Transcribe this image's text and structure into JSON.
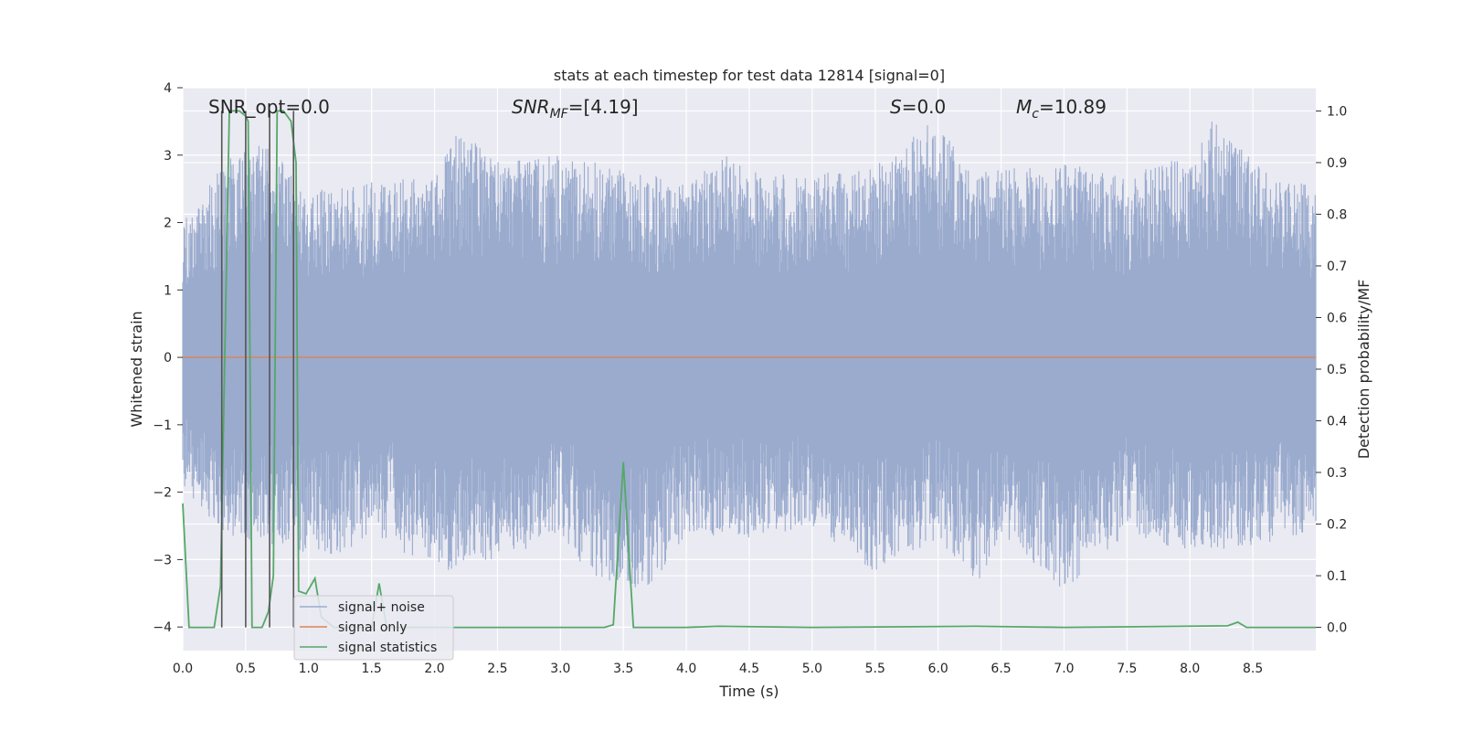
{
  "chart_data": {
    "type": "line",
    "title": "stats at each timestep for test data 12814 [signal=0]",
    "xlabel": "Time (s)",
    "ylabel": "Whitened strain",
    "y2label": "Detection probability/MF",
    "xlim": [
      0.0,
      9.0
    ],
    "ylim": [
      -4.35,
      4.0
    ],
    "y2lim": [
      -0.045,
      1.045
    ],
    "x_ticks": [
      "0.0",
      "0.5",
      "1.0",
      "1.5",
      "2.0",
      "2.5",
      "3.0",
      "3.5",
      "4.0",
      "4.5",
      "5.0",
      "5.5",
      "6.0",
      "6.5",
      "7.0",
      "7.5",
      "8.0",
      "8.5"
    ],
    "y_ticks": [
      "4",
      "3",
      "2",
      "1",
      "0",
      "−1",
      "−2",
      "−3",
      "−4"
    ],
    "y2_ticks": [
      "1.0",
      "0.9",
      "0.8",
      "0.7",
      "0.6",
      "0.5",
      "0.4",
      "0.3",
      "0.2",
      "0.1",
      "0.0"
    ],
    "annotations": {
      "snr_opt": "SNR_opt=0.0",
      "snr_mf_main": "SNR",
      "snr_mf_sub": "MF",
      "snr_mf_value": "=[4.19]",
      "s_main": "S",
      "s_value": "=0.0",
      "mc_main": "M",
      "mc_sub": "c",
      "mc_value": "=10.89"
    },
    "legend": [
      "signal+ noise",
      "signal only",
      "signal statistics"
    ],
    "legend_position": "lower-left",
    "colors": {
      "noise": "#9aabce",
      "signal_only": "#dd8452",
      "statistics": "#55a868",
      "marker": "#555555",
      "panel_bg": "#eaeaf2",
      "grid": "#ffffff"
    },
    "series": [
      {
        "name": "signal+ noise",
        "envelope_upper": [
          [
            0.0,
            2.0
          ],
          [
            0.3,
            2.8
          ],
          [
            0.5,
            3.3
          ],
          [
            0.7,
            3.1
          ],
          [
            1.0,
            2.5
          ],
          [
            1.5,
            2.6
          ],
          [
            2.0,
            2.7
          ],
          [
            2.2,
            3.4
          ],
          [
            2.5,
            2.9
          ],
          [
            3.0,
            3.0
          ],
          [
            3.5,
            2.8
          ],
          [
            4.0,
            2.6
          ],
          [
            4.3,
            3.0
          ],
          [
            4.5,
            2.8
          ],
          [
            5.0,
            2.7
          ],
          [
            5.5,
            2.9
          ],
          [
            5.95,
            3.5
          ],
          [
            6.3,
            2.8
          ],
          [
            7.0,
            2.9
          ],
          [
            7.5,
            2.7
          ],
          [
            8.0,
            3.0
          ],
          [
            8.2,
            3.6
          ],
          [
            8.5,
            2.9
          ],
          [
            9.0,
            2.5
          ]
        ],
        "envelope_lower": [
          [
            0.0,
            -1.9
          ],
          [
            0.3,
            -2.6
          ],
          [
            0.5,
            -2.7
          ],
          [
            0.7,
            -2.8
          ],
          [
            1.0,
            -2.9
          ],
          [
            1.2,
            -3.0
          ],
          [
            1.5,
            -2.6
          ],
          [
            2.0,
            -3.2
          ],
          [
            2.5,
            -3.1
          ],
          [
            3.0,
            -2.6
          ],
          [
            3.2,
            -3.2
          ],
          [
            3.7,
            -3.5
          ],
          [
            4.0,
            -2.6
          ],
          [
            4.5,
            -2.7
          ],
          [
            5.0,
            -2.5
          ],
          [
            5.5,
            -3.2
          ],
          [
            6.0,
            -2.7
          ],
          [
            6.35,
            -3.4
          ],
          [
            6.5,
            -2.6
          ],
          [
            7.0,
            -3.5
          ],
          [
            7.5,
            -2.6
          ],
          [
            8.0,
            -2.9
          ],
          [
            8.5,
            -2.8
          ],
          [
            9.0,
            -2.6
          ]
        ]
      },
      {
        "name": "signal only",
        "points": [
          [
            0.0,
            0.0
          ],
          [
            9.0,
            0.0
          ]
        ]
      },
      {
        "name": "signal statistics",
        "axis": "right",
        "points": [
          [
            0.0,
            0.24
          ],
          [
            0.05,
            0.0
          ],
          [
            0.25,
            0.0
          ],
          [
            0.3,
            0.08
          ],
          [
            0.37,
            1.0
          ],
          [
            0.45,
            1.0
          ],
          [
            0.5,
            0.99
          ],
          [
            0.52,
            0.98
          ],
          [
            0.55,
            0.0
          ],
          [
            0.63,
            0.0
          ],
          [
            0.68,
            0.03
          ],
          [
            0.72,
            0.1
          ],
          [
            0.75,
            1.0
          ],
          [
            0.8,
            1.0
          ],
          [
            0.86,
            0.98
          ],
          [
            0.9,
            0.9
          ],
          [
            0.92,
            0.07
          ],
          [
            0.98,
            0.065
          ],
          [
            1.05,
            0.095
          ],
          [
            1.1,
            0.02
          ],
          [
            1.2,
            0.0
          ],
          [
            1.5,
            0.0
          ],
          [
            1.56,
            0.085
          ],
          [
            1.62,
            0.0
          ],
          [
            3.35,
            0.0
          ],
          [
            3.42,
            0.005
          ],
          [
            3.5,
            0.32
          ],
          [
            3.58,
            0.0
          ],
          [
            4.0,
            0.0
          ],
          [
            4.25,
            0.002
          ],
          [
            5.0,
            0.0
          ],
          [
            6.3,
            0.002
          ],
          [
            7.0,
            0.0
          ],
          [
            8.3,
            0.003
          ],
          [
            8.38,
            0.01
          ],
          [
            8.45,
            0.0
          ],
          [
            9.0,
            0.0
          ]
        ]
      }
    ],
    "markers_x": [
      0.31,
      0.5,
      0.69,
      0.88
    ]
  }
}
